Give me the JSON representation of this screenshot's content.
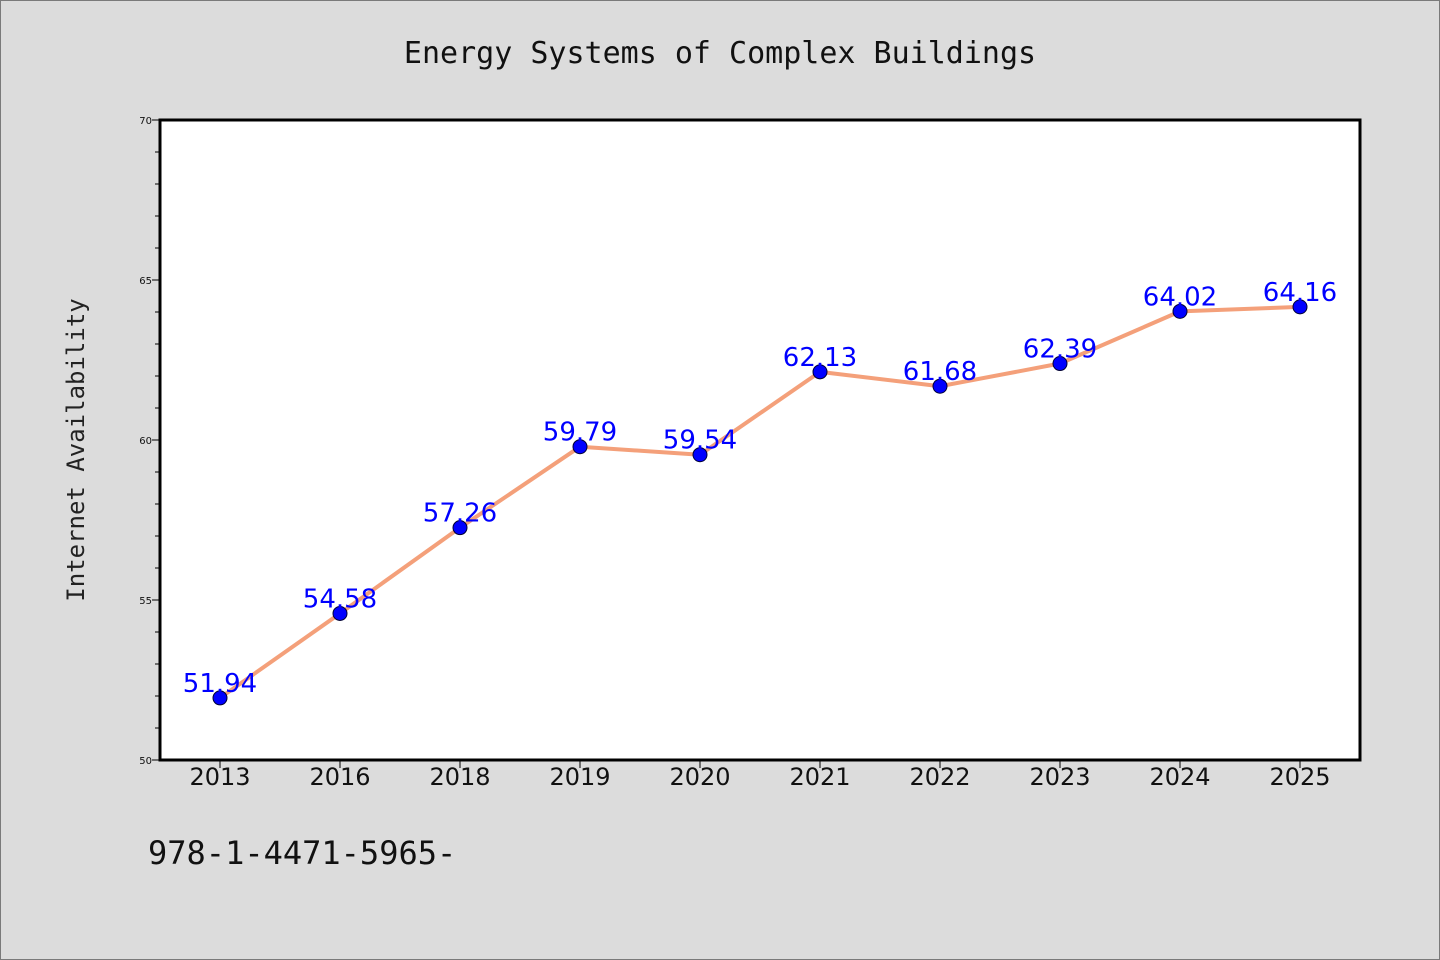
{
  "chart_data": {
    "type": "line",
    "title": "Energy Systems of Complex Buildings",
    "xlabel": "",
    "ylabel": "Internet Availability",
    "categories": [
      "2013",
      "2016",
      "2018",
      "2019",
      "2020",
      "2021",
      "2022",
      "2023",
      "2024",
      "2025"
    ],
    "values": [
      51.94,
      54.58,
      57.26,
      59.79,
      59.54,
      62.13,
      61.68,
      62.39,
      64.02,
      64.16
    ],
    "data_labels": [
      "51.94",
      "54.58",
      "57.26",
      "59.79",
      "59.54",
      "62.13",
      "61.68",
      "62.39",
      "64.02",
      "64.16"
    ],
    "ylim": [
      50,
      70
    ],
    "yticks": [
      50,
      55,
      60,
      65,
      70
    ],
    "ytick_labels": [
      "50",
      "55",
      "60",
      "65",
      "70"
    ],
    "grid": false,
    "legend": "none",
    "line_color": "#f4a07a",
    "marker_color": "#0000ff",
    "label_color": "#0000ff"
  },
  "footer": {
    "text": "978-1-4471-5965-"
  }
}
